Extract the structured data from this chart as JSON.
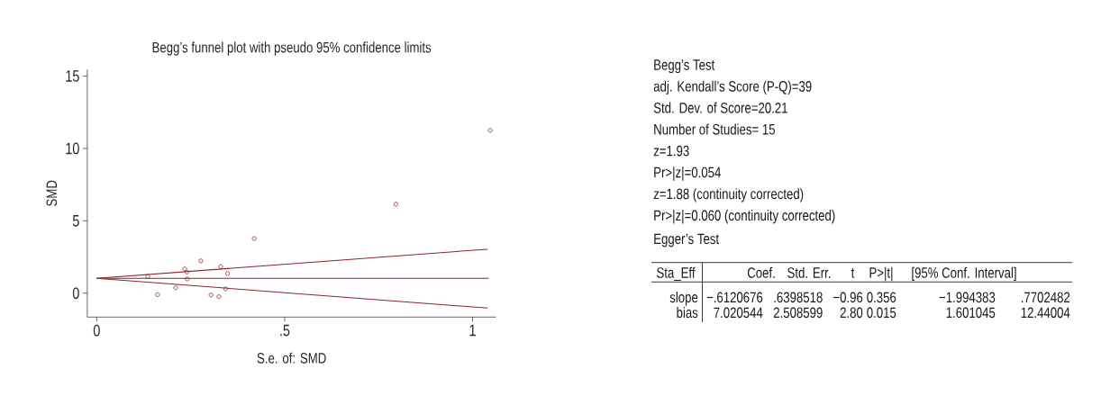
{
  "chart_data": [
    {
      "type": "scatter",
      "title": "Begg’s funnel plot with pseudo 95% confidence limits",
      "xlabel": "S.e. of: SMD",
      "ylabel": "SMD",
      "xlim": [
        -0.025,
        1.062
      ],
      "ylim": [
        -1.65,
        15.45
      ],
      "xticks": [
        {
          "value": 0,
          "label": "0"
        },
        {
          "value": 0.5,
          "label": ".5"
        },
        {
          "value": 1,
          "label": "1"
        }
      ],
      "yticks": [
        0,
        5,
        10,
        15
      ],
      "series": [
        {
          "type": "scatter",
          "marker": "circle",
          "color": "#8b2328",
          "x": [
            0.136,
            0.162,
            0.21,
            0.234,
            0.24,
            0.241,
            0.277,
            0.304,
            0.325,
            0.33,
            0.343,
            0.348,
            0.419,
            0.796,
            1.047
          ],
          "values": [
            1.15,
            -0.1,
            0.38,
            1.68,
            1.46,
            0.98,
            2.23,
            -0.12,
            -0.24,
            1.84,
            0.29,
            1.36,
            3.78,
            6.15,
            11.25
          ]
        },
        {
          "type": "line",
          "color": "#8b2328",
          "x": [
            0,
            1.043
          ],
          "values": [
            1.03,
            1.03
          ]
        },
        {
          "type": "line",
          "color": "#8b2328",
          "x": [
            0,
            1.04
          ],
          "values": [
            1.03,
            3.04
          ]
        },
        {
          "type": "line",
          "color": "#8b2328",
          "x": [
            0,
            1.04
          ],
          "values": [
            1.03,
            -1.03
          ]
        }
      ]
    },
    {
      "type": "other",
      "title": "Begg’s Test",
      "annotations": [
        "adj. Kendall’s Score (P-Q)=39",
        "Std. Dev. of Score=20.21",
        "Number of Studies= 15",
        "z=1.93",
        "Pr>|z|=0.054",
        "z=1.88 (continuity corrected)",
        "Pr>|z|=0.060 (continuity corrected)"
      ]
    },
    {
      "type": "other",
      "title": "Egger’s Test",
      "annotations": [
        "Sta_Eff",
        "Coef.",
        "Std. Err.",
        "t",
        "P>|t|",
        "[95% Conf. Interval]",
        "slope",
        "−.6120676",
        ".6398518",
        "−0.96",
        "0.356",
        "−1.994383",
        ".7702482",
        "bias",
        "7.020544",
        "2.508599",
        "2.80",
        "0.015",
        "1.601045",
        "12.44004"
      ]
    }
  ]
}
